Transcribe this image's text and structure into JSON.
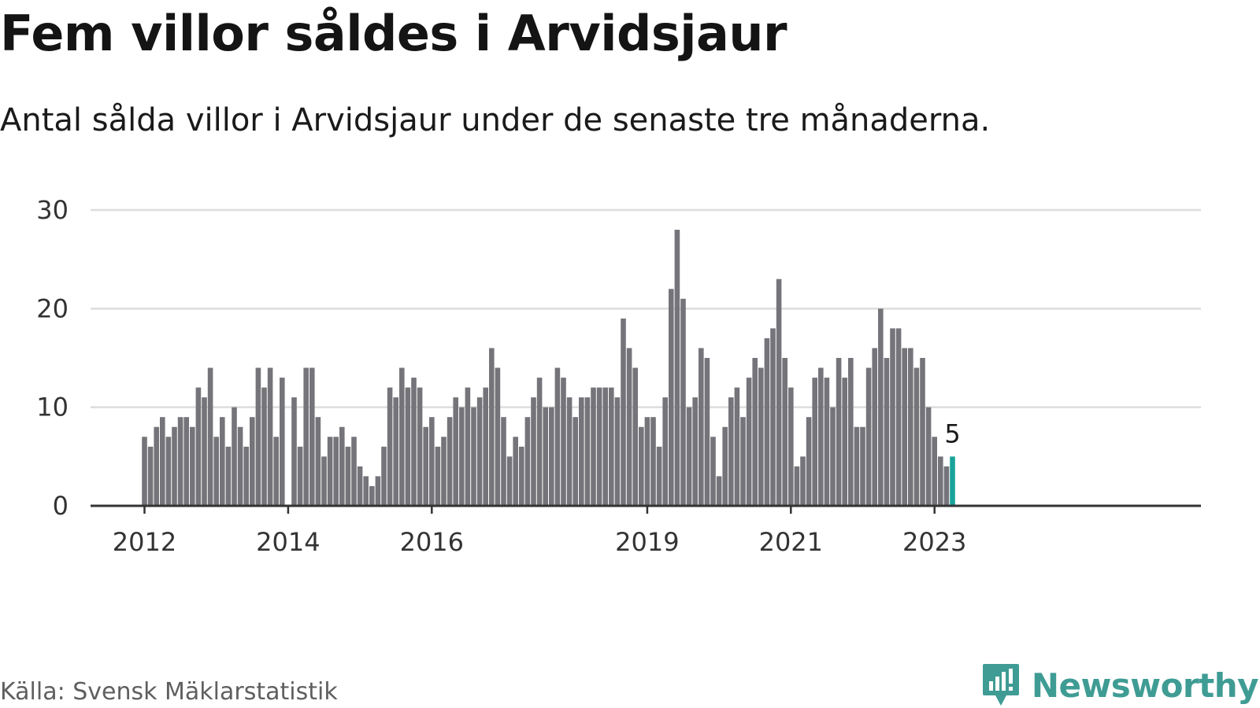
{
  "title": "Fem villor såldes i Arvidsjaur",
  "subtitle": "Antal sålda villor i Arvidsjaur under de senaste tre månaderna.",
  "source": "Källa: Svensk Mäklarstatistik",
  "brand": {
    "name": "Newsworthy",
    "icon": "newsworthy-logo-icon",
    "color": "#3f9c94"
  },
  "colors": {
    "bar": "#75747a",
    "highlight": "#1aa39a",
    "grid": "#dddddd",
    "axis": "#333333"
  },
  "chart_data": {
    "type": "bar",
    "title": "Fem villor såldes i Arvidsjaur",
    "subtitle": "Antal sålda villor i Arvidsjaur under de senaste tre månaderna.",
    "ylim": [
      0,
      30
    ],
    "y_ticks": [
      0,
      10,
      20,
      30
    ],
    "x_ticks": [
      "2012",
      "2014",
      "2016",
      "2019",
      "2021",
      "2023"
    ],
    "grid": true,
    "x_start": "2012-01",
    "values": [
      7,
      6,
      8,
      9,
      7,
      8,
      9,
      9,
      8,
      12,
      11,
      14,
      7,
      9,
      6,
      10,
      8,
      6,
      9,
      14,
      12,
      14,
      7,
      13,
      0,
      11,
      6,
      14,
      14,
      9,
      5,
      7,
      7,
      8,
      6,
      7,
      4,
      3,
      2,
      3,
      6,
      12,
      11,
      14,
      12,
      13,
      12,
      8,
      9,
      6,
      7,
      9,
      11,
      10,
      12,
      10,
      11,
      12,
      16,
      14,
      9,
      5,
      7,
      6,
      9,
      11,
      13,
      10,
      10,
      14,
      13,
      11,
      9,
      11,
      11,
      12,
      12,
      12,
      12,
      11,
      19,
      16,
      14,
      8,
      9,
      9,
      6,
      11,
      22,
      28,
      21,
      10,
      11,
      16,
      15,
      7,
      3,
      8,
      11,
      12,
      9,
      13,
      15,
      14,
      17,
      18,
      23,
      15,
      12,
      4,
      5,
      9,
      13,
      14,
      13,
      10,
      15,
      13,
      15,
      8,
      8,
      14,
      16,
      20,
      15,
      18,
      18,
      16,
      16,
      14,
      15,
      10,
      7,
      5,
      4,
      5
    ],
    "highlight_last": true,
    "last_value_label": "5"
  }
}
